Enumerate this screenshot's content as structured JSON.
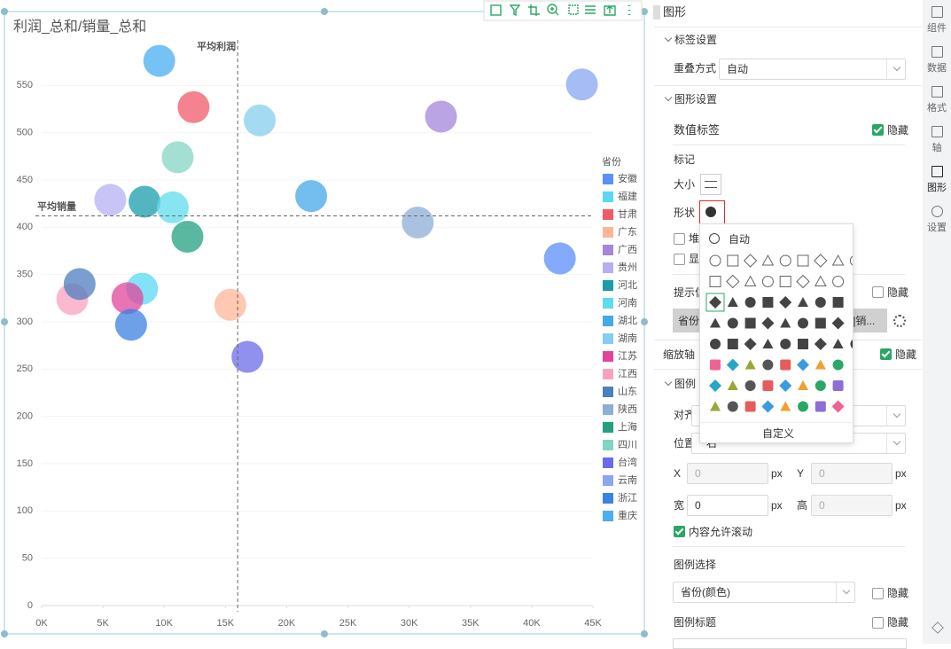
{
  "chart_data": {
    "type": "scatter",
    "title": "利润_总和/销量_总和",
    "legend_title": "省份",
    "legend_position": "right",
    "grid": true,
    "xlim": [
      0,
      45000
    ],
    "xticks": [
      {
        "value": 0,
        "label": "0K"
      },
      {
        "value": 5000,
        "label": "5K"
      },
      {
        "value": 10000,
        "label": "10K"
      },
      {
        "value": 15000,
        "label": "15K"
      },
      {
        "value": 20000,
        "label": "20K"
      },
      {
        "value": 25000,
        "label": "25K"
      },
      {
        "value": 30000,
        "label": "30K"
      },
      {
        "value": 35000,
        "label": "35K"
      },
      {
        "value": 40000,
        "label": "40K"
      },
      {
        "value": 45000,
        "label": "45K"
      }
    ],
    "ylim": [
      0,
      600
    ],
    "yticks": [
      0,
      50,
      100,
      150,
      200,
      250,
      300,
      350,
      400,
      450,
      500,
      550
    ],
    "ref_lines": [
      {
        "axis": "x",
        "label": "平均利润",
        "value": 16000
      },
      {
        "axis": "y",
        "label": "平均销量",
        "value": 412
      }
    ],
    "series": [
      {
        "name": "安徽",
        "color": "#5b8ff9",
        "x": [
          42300
        ],
        "values": [
          367
        ]
      },
      {
        "name": "福建",
        "color": "#5ad8f6",
        "x": [
          8200
        ],
        "values": [
          335
        ]
      },
      {
        "name": "甘肃",
        "color": "#f25a6a",
        "x": [
          12400
        ],
        "values": [
          527
        ]
      },
      {
        "name": "广东",
        "color": "#fdb598",
        "x": [
          15400
        ],
        "values": [
          318
        ]
      },
      {
        "name": "广西",
        "color": "#a486da",
        "x": [
          32600
        ],
        "values": [
          517
        ]
      },
      {
        "name": "贵州",
        "color": "#b5b0f2",
        "x": [
          5600
        ],
        "values": [
          429
        ]
      },
      {
        "name": "河北",
        "color": "#1a9caa",
        "x": [
          8400
        ],
        "values": [
          427
        ]
      },
      {
        "name": "河南",
        "color": "#5fdcec",
        "x": [
          10700
        ],
        "values": [
          421
        ]
      },
      {
        "name": "湖北",
        "color": "#45a8ea",
        "x": [
          22000
        ],
        "values": [
          433
        ]
      },
      {
        "name": "湖南",
        "color": "#86cdee",
        "x": [
          17800
        ],
        "values": [
          513
        ]
      },
      {
        "name": "江苏",
        "color": "#e0459b",
        "x": [
          7000
        ],
        "values": [
          325
        ]
      },
      {
        "name": "江西",
        "color": "#f9a2bf",
        "x": [
          2500
        ],
        "values": [
          324
        ]
      },
      {
        "name": "山东",
        "color": "#4d7fbf",
        "x": [
          3100
        ],
        "values": [
          340
        ]
      },
      {
        "name": "陕西",
        "color": "#8eadd8",
        "x": [
          30700
        ],
        "values": [
          405
        ]
      },
      {
        "name": "上海",
        "color": "#22a07f",
        "x": [
          11900
        ],
        "values": [
          390
        ]
      },
      {
        "name": "四川",
        "color": "#84d4c4",
        "x": [
          11100
        ],
        "values": [
          474
        ]
      },
      {
        "name": "台湾",
        "color": "#6b6bea",
        "x": [
          16800
        ],
        "values": [
          263
        ]
      },
      {
        "name": "云南",
        "color": "#88a6f2",
        "x": [
          44100
        ],
        "values": [
          551
        ]
      },
      {
        "name": "浙江",
        "color": "#3b82e3",
        "x": [
          7300
        ],
        "values": [
          297
        ]
      },
      {
        "name": "重庆",
        "color": "#4aaef2",
        "x": [
          9600
        ],
        "values": [
          576
        ]
      }
    ]
  },
  "panel": {
    "title": "图形",
    "label_settings": "标签设置",
    "overlap": "重叠方式",
    "overlap_value": "自动",
    "shape_settings": "图形设置",
    "value_label": "数值标签",
    "hide": "隐藏",
    "marker": "标记",
    "size": "大小",
    "shape": "形状",
    "stack": "堆",
    "show": "显",
    "tooltip": "提示信",
    "tooltip_field_start": "省份:",
    "tooltip_field_end": "]销...",
    "zoom_axis": "缩放轴",
    "legend": "图例",
    "align": "对齐",
    "position": "位置",
    "position_value": "右",
    "x": "X",
    "y": "Y",
    "width": "宽",
    "height": "高",
    "zero": "0",
    "px": "px",
    "scroll": "内容允许滚动",
    "legend_select": "图例选择",
    "legend_select_value": "省份(颜色)",
    "legend_title": "图例标题"
  },
  "shape_menu": {
    "auto": "自动",
    "custom": "自定义"
  },
  "sidebar": {
    "tabs": [
      "组件",
      "数据",
      "格式",
      "轴",
      "图形",
      "设置"
    ]
  }
}
